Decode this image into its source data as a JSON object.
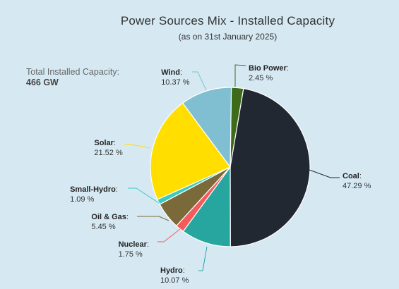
{
  "title": "Power Sources Mix - Installed Capacity",
  "subtitle": "(as on 31st January 2025)",
  "total": {
    "label": "Total Installed Capacity:",
    "value": "466 GW"
  },
  "chart_data": {
    "type": "pie",
    "title": "Power Sources Mix - Installed Capacity",
    "unit": "%",
    "slices": [
      {
        "name": "Bio Power",
        "value": 2.45,
        "label": "2.45 %",
        "color": "#3d6b1a"
      },
      {
        "name": "Coal",
        "value": 47.29,
        "label": "47.29 %",
        "color": "#222831"
      },
      {
        "name": "Hydro",
        "value": 10.07,
        "label": "10.07 %",
        "color": "#27a69f"
      },
      {
        "name": "Nuclear",
        "value": 1.75,
        "label": "1.75 %",
        "color": "#f25c5c"
      },
      {
        "name": "Oil & Gas",
        "value": 5.45,
        "label": "5.45 %",
        "color": "#7a6a3a"
      },
      {
        "name": "Small-Hydro",
        "value": 1.09,
        "label": "1.09 %",
        "color": "#3ec9c0"
      },
      {
        "name": "Solar",
        "value": 21.52,
        "label": "21.52 %",
        "color": "#ffde00"
      },
      {
        "name": "Wind",
        "value": 10.37,
        "label": "10.37 %",
        "color": "#7fbfd1"
      }
    ]
  }
}
